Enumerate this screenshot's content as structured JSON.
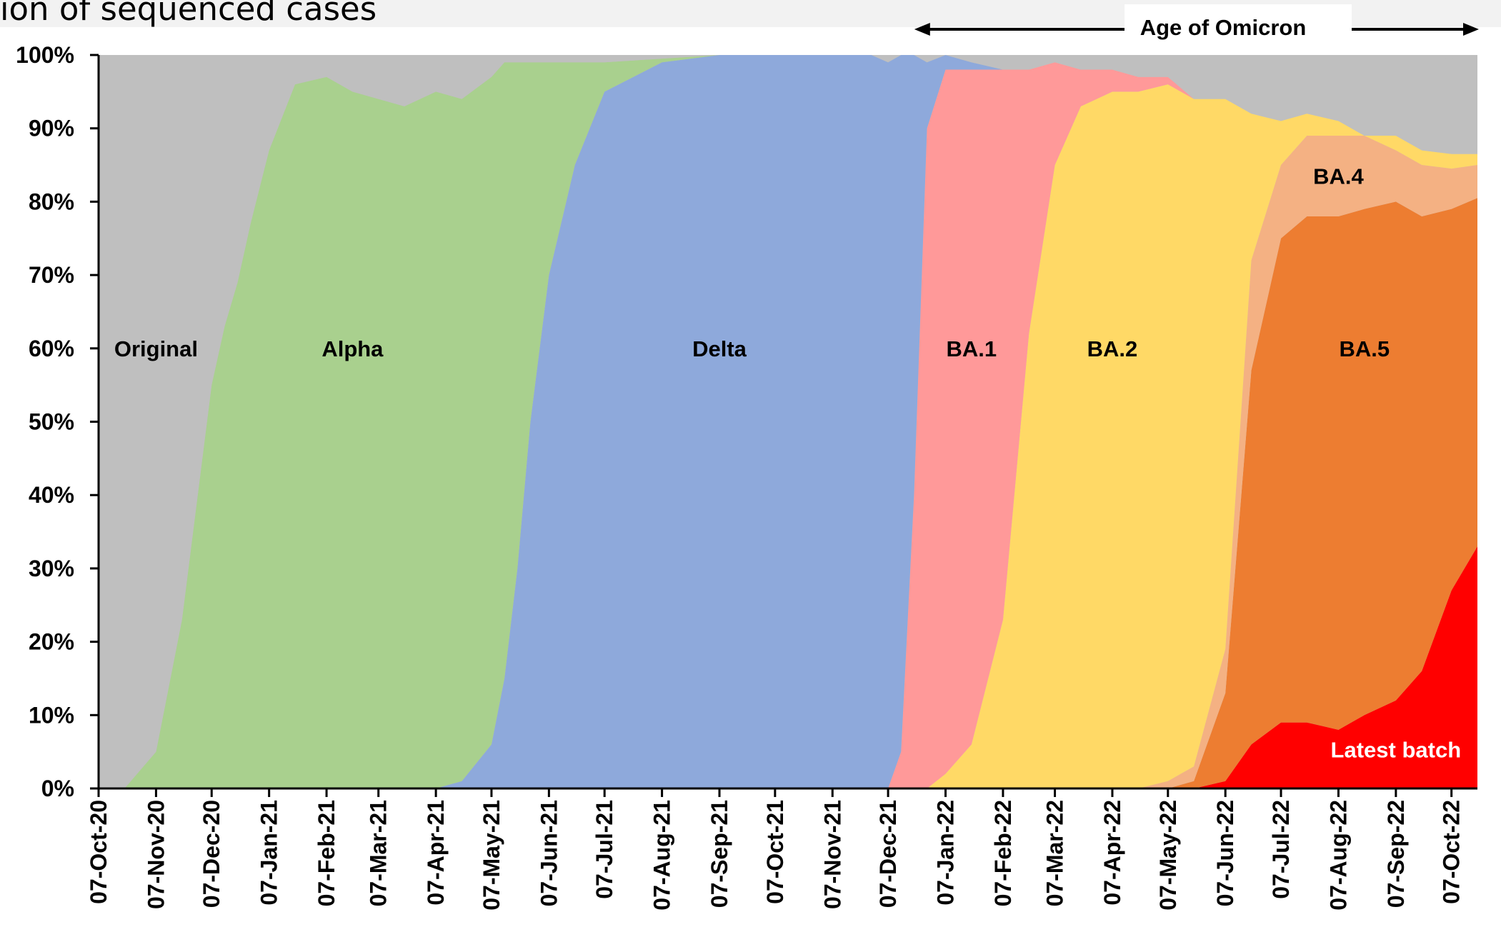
{
  "chart_data": {
    "type": "area",
    "title": "ion of sequenced cases",
    "stacked": true,
    "normalized": true,
    "y_tick_labels": [
      "0%",
      "10%",
      "20%",
      "30%",
      "40%",
      "50%",
      "60%",
      "70%",
      "80%",
      "90%",
      "100%"
    ],
    "ylim": [
      0,
      100
    ],
    "x_tick_labels": [
      "07-Oct-20",
      "07-Nov-20",
      "07-Dec-20",
      "07-Jan-21",
      "07-Feb-21",
      "07-Mar-21",
      "07-Apr-21",
      "07-May-21",
      "07-Jun-21",
      "07-Jul-21",
      "07-Aug-21",
      "07-Sep-21",
      "07-Oct-21",
      "07-Nov-21",
      "07-Dec-21",
      "07-Jan-22",
      "07-Feb-22",
      "07-Mar-22",
      "07-Apr-22",
      "07-May-22",
      "07-Jun-22",
      "07-Jul-22",
      "07-Aug-22",
      "07-Sep-22",
      "07-Oct-22"
    ],
    "x_dates": [
      "2020-10-07",
      "2020-10-21",
      "2020-11-07",
      "2020-11-21",
      "2020-12-07",
      "2020-12-14",
      "2020-12-21",
      "2020-12-28",
      "2021-01-07",
      "2021-01-21",
      "2021-02-07",
      "2021-02-21",
      "2021-03-07",
      "2021-03-21",
      "2021-04-07",
      "2021-04-21",
      "2021-05-07",
      "2021-05-14",
      "2021-05-21",
      "2021-05-28",
      "2021-06-07",
      "2021-06-21",
      "2021-07-07",
      "2021-08-07",
      "2021-09-07",
      "2021-10-07",
      "2021-11-07",
      "2021-11-28",
      "2021-12-07",
      "2021-12-14",
      "2021-12-21",
      "2021-12-28",
      "2022-01-07",
      "2022-01-21",
      "2022-02-07",
      "2022-02-21",
      "2022-03-07",
      "2022-03-21",
      "2022-04-07",
      "2022-04-21",
      "2022-05-07",
      "2022-05-21",
      "2022-06-07",
      "2022-06-21",
      "2022-07-07",
      "2022-07-21",
      "2022-08-07",
      "2022-08-21",
      "2022-09-07",
      "2022-09-21",
      "2022-10-07",
      "2022-10-21"
    ],
    "series": [
      {
        "name": "Latest batch",
        "color": "#FF0000",
        "values": [
          0,
          0,
          0,
          0,
          0,
          0,
          0,
          0,
          0,
          0,
          0,
          0,
          0,
          0,
          0,
          0,
          0,
          0,
          0,
          0,
          0,
          0,
          0,
          0,
          0,
          0,
          0,
          0,
          0,
          0,
          0,
          0,
          0,
          0,
          0,
          0,
          0,
          0,
          0,
          0,
          0,
          0,
          1,
          6,
          9,
          9,
          8,
          10,
          12,
          16,
          27,
          33
        ]
      },
      {
        "name": "BA.5",
        "color": "#ED7D31",
        "values": [
          0,
          0,
          0,
          0,
          0,
          0,
          0,
          0,
          0,
          0,
          0,
          0,
          0,
          0,
          0,
          0,
          0,
          0,
          0,
          0,
          0,
          0,
          0,
          0,
          0,
          0,
          0,
          0,
          0,
          0,
          0,
          0,
          0,
          0,
          0,
          0,
          0,
          0,
          0,
          0,
          0,
          1,
          12,
          51,
          66,
          69,
          70,
          69,
          68,
          62,
          52,
          47.5
        ]
      },
      {
        "name": "BA.4",
        "color": "#F4B183",
        "values": [
          0,
          0,
          0,
          0,
          0,
          0,
          0,
          0,
          0,
          0,
          0,
          0,
          0,
          0,
          0,
          0,
          0,
          0,
          0,
          0,
          0,
          0,
          0,
          0,
          0,
          0,
          0,
          0,
          0,
          0,
          0,
          0,
          0,
          0,
          0,
          0,
          0,
          0,
          0,
          0,
          1,
          2,
          6,
          15,
          10,
          11,
          11,
          10,
          7,
          7,
          5.5,
          4.5
        ]
      },
      {
        "name": "BA.2",
        "color": "#FFD966",
        "values": [
          0,
          0,
          0,
          0,
          0,
          0,
          0,
          0,
          0,
          0,
          0,
          0,
          0,
          0,
          0,
          0,
          0,
          0,
          0,
          0,
          0,
          0,
          0,
          0,
          0,
          0,
          0,
          0,
          0,
          0,
          0,
          0,
          2,
          6,
          23,
          62,
          85,
          93,
          95,
          95,
          95,
          91,
          75,
          20,
          6,
          3,
          2,
          0,
          2,
          2,
          2,
          1.5
        ]
      },
      {
        "name": "BA.1",
        "color": "#FF9999",
        "values": [
          0,
          0,
          0,
          0,
          0,
          0,
          0,
          0,
          0,
          0,
          0,
          0,
          0,
          0,
          0,
          0,
          0,
          0,
          0,
          0,
          0,
          0,
          0,
          0,
          0,
          0,
          0,
          0,
          0,
          5,
          40,
          90,
          96,
          92,
          75,
          36,
          14,
          5,
          3,
          2,
          1,
          0,
          0,
          0,
          0,
          0,
          0,
          0,
          0,
          0,
          0,
          0
        ]
      },
      {
        "name": "Delta",
        "color": "#8EA9DB",
        "values": [
          0,
          0,
          0,
          0,
          0,
          0,
          0,
          0,
          0,
          0,
          0,
          0,
          0,
          0,
          0,
          1,
          6,
          15,
          30,
          50,
          70,
          85,
          95,
          99,
          100,
          100,
          100,
          100,
          99,
          95,
          60,
          9,
          2,
          1,
          0,
          0,
          0,
          0,
          0,
          0,
          0,
          0,
          0,
          0,
          0,
          0,
          0,
          0,
          0,
          0,
          0,
          0
        ]
      },
      {
        "name": "Alpha",
        "color": "#A9D08E",
        "values": [
          0,
          0,
          5,
          23,
          55,
          63,
          69,
          77,
          87,
          96,
          97,
          95,
          94,
          93,
          95,
          93,
          91,
          84,
          69,
          49,
          29,
          14,
          4,
          0.5,
          0,
          0,
          0,
          0,
          0,
          0,
          0,
          0,
          0,
          0,
          0,
          0,
          0,
          0,
          0,
          0,
          0,
          0,
          0,
          0,
          0,
          0,
          0,
          0,
          0,
          0,
          0,
          0
        ]
      },
      {
        "name": "Original",
        "color": "#BFBFBF",
        "values": [
          100,
          100,
          95,
          77,
          45,
          37,
          31,
          23,
          13,
          4,
          3,
          5,
          6,
          7,
          5,
          6,
          3,
          1,
          1,
          1,
          1,
          1,
          1,
          0.5,
          0,
          0,
          0,
          0,
          1,
          0,
          0,
          1,
          2,
          1,
          2,
          2,
          1,
          2,
          2,
          3,
          3,
          6,
          6,
          8,
          9,
          8,
          9,
          11,
          11,
          13,
          13,
          13.5
        ]
      }
    ],
    "area_labels": [
      {
        "text": "Original",
        "color": "#000000",
        "date": "2020-11-07",
        "y": 60
      },
      {
        "text": "Alpha",
        "color": "#000000",
        "date": "2021-02-21",
        "y": 60
      },
      {
        "text": "Delta",
        "color": "#000000",
        "date": "2021-09-07",
        "y": 60
      },
      {
        "text": "BA.1",
        "color": "#000000",
        "date": "2022-01-21",
        "y": 60
      },
      {
        "text": "BA.2",
        "color": "#000000",
        "date": "2022-04-07",
        "y": 60
      },
      {
        "text": "BA.5",
        "color": "#000000",
        "date": "2022-08-21",
        "y": 60
      },
      {
        "text": "BA.4",
        "color": "#000000",
        "date": "2022-08-07",
        "y": 83.5
      },
      {
        "text": "Latest batch",
        "color": "#FFFFFF",
        "date": "2022-09-07",
        "y": 5.3
      }
    ],
    "annotation": {
      "text": "Age of Omicron",
      "from_date": "2022-01-21",
      "to_date": "2022-10-21"
    }
  }
}
